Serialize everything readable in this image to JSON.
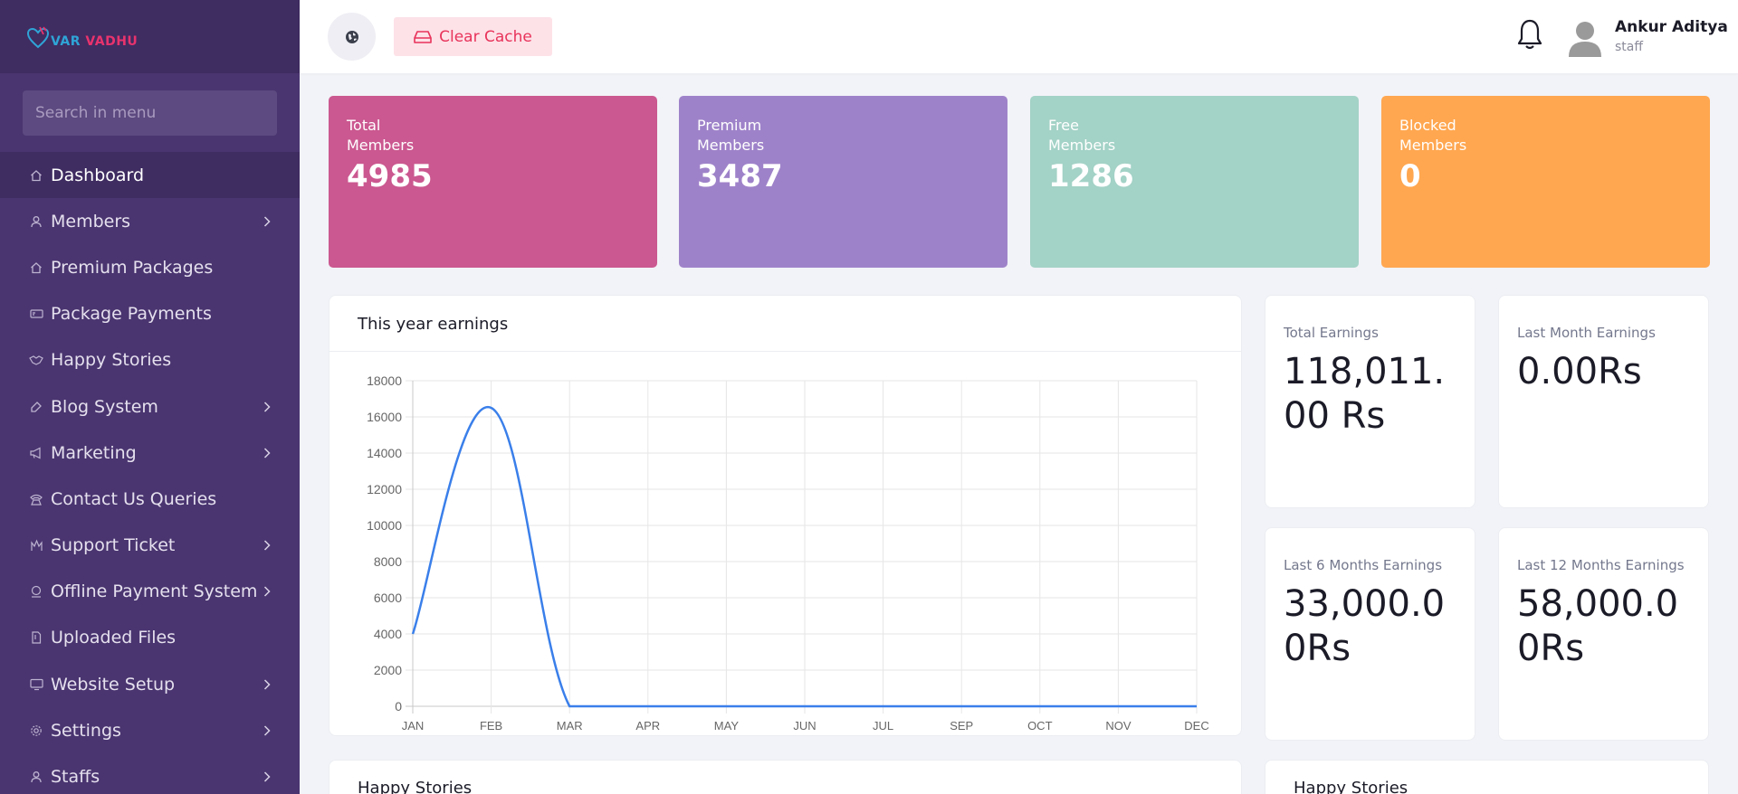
{
  "brand": {
    "logo_text_a": "VAR",
    "logo_text_b": "VADHU"
  },
  "sidebar": {
    "search_placeholder": "Search in menu",
    "items": [
      {
        "label": "Dashboard",
        "icon": "home-icon",
        "active": true,
        "has_children": false
      },
      {
        "label": "Members",
        "icon": "user-icon",
        "has_children": true
      },
      {
        "label": "Premium Packages",
        "icon": "home-icon",
        "has_children": false
      },
      {
        "label": "Package Payments",
        "icon": "card-icon",
        "has_children": false
      },
      {
        "label": "Happy Stories",
        "icon": "handshake-icon",
        "has_children": false
      },
      {
        "label": "Blog System",
        "icon": "blog-icon",
        "has_children": true
      },
      {
        "label": "Marketing",
        "icon": "megaphone-icon",
        "has_children": true
      },
      {
        "label": "Contact Us Queries",
        "icon": "phone-icon",
        "has_children": false
      },
      {
        "label": "Support Ticket",
        "icon": "support-icon",
        "has_children": true
      },
      {
        "label": "Offline Payment System",
        "icon": "payment-icon",
        "has_children": true
      },
      {
        "label": "Uploaded Files",
        "icon": "file-icon",
        "has_children": false
      },
      {
        "label": "Website Setup",
        "icon": "monitor-icon",
        "has_children": true
      },
      {
        "label": "Settings",
        "icon": "gear-icon",
        "has_children": true
      },
      {
        "label": "Staffs",
        "icon": "user-icon",
        "has_children": true
      }
    ]
  },
  "topbar": {
    "clear_cache_label": "Clear Cache",
    "user_name": "Ankur Aditya",
    "user_role": "staff"
  },
  "stats": [
    {
      "line1": "Total",
      "line2": "Members",
      "value": "4985",
      "color": "#cb5890"
    },
    {
      "line1": "Premium",
      "line2": "Members",
      "value": "3487",
      "color": "#9e82c9"
    },
    {
      "line1": "Free",
      "line2": "Members",
      "value": "1286",
      "color": "#a3d2c6"
    },
    {
      "line1": "Blocked",
      "line2": "Members",
      "value": "0",
      "color": "#ffa750"
    }
  ],
  "earnings_panel": {
    "title": "This year earnings"
  },
  "kpis": [
    {
      "label": "Total Earnings",
      "value": "118,011.00 Rs"
    },
    {
      "label": "Last Month Earnings",
      "value": "0.00Rs"
    },
    {
      "label": "Last 6 Months Earnings",
      "value": "33,000.0 0Rs"
    },
    {
      "label": "Last 12 Months Earnings",
      "value": "58,000.0 0Rs"
    }
  ],
  "bottom_panels": [
    {
      "title": "Happy Stories"
    },
    {
      "title": "Happy Stories"
    }
  ],
  "chart_data": {
    "type": "line",
    "title": "This year earnings",
    "xlabel": "",
    "ylabel": "",
    "categories": [
      "JAN",
      "FEB",
      "MAR",
      "APR",
      "MAY",
      "JUN",
      "JUL",
      "SEP",
      "OCT",
      "NOV",
      "DEC"
    ],
    "series": [
      {
        "values": [
          4000,
          16500,
          0,
          0,
          0,
          0,
          0,
          0,
          0,
          0,
          0
        ],
        "color": "#3a7fea"
      }
    ],
    "ylim": [
      0,
      18000
    ],
    "yticks": [
      0,
      2000,
      4000,
      6000,
      8000,
      10000,
      12000,
      14000,
      16000,
      18000
    ],
    "grid": true,
    "legend": "none"
  }
}
